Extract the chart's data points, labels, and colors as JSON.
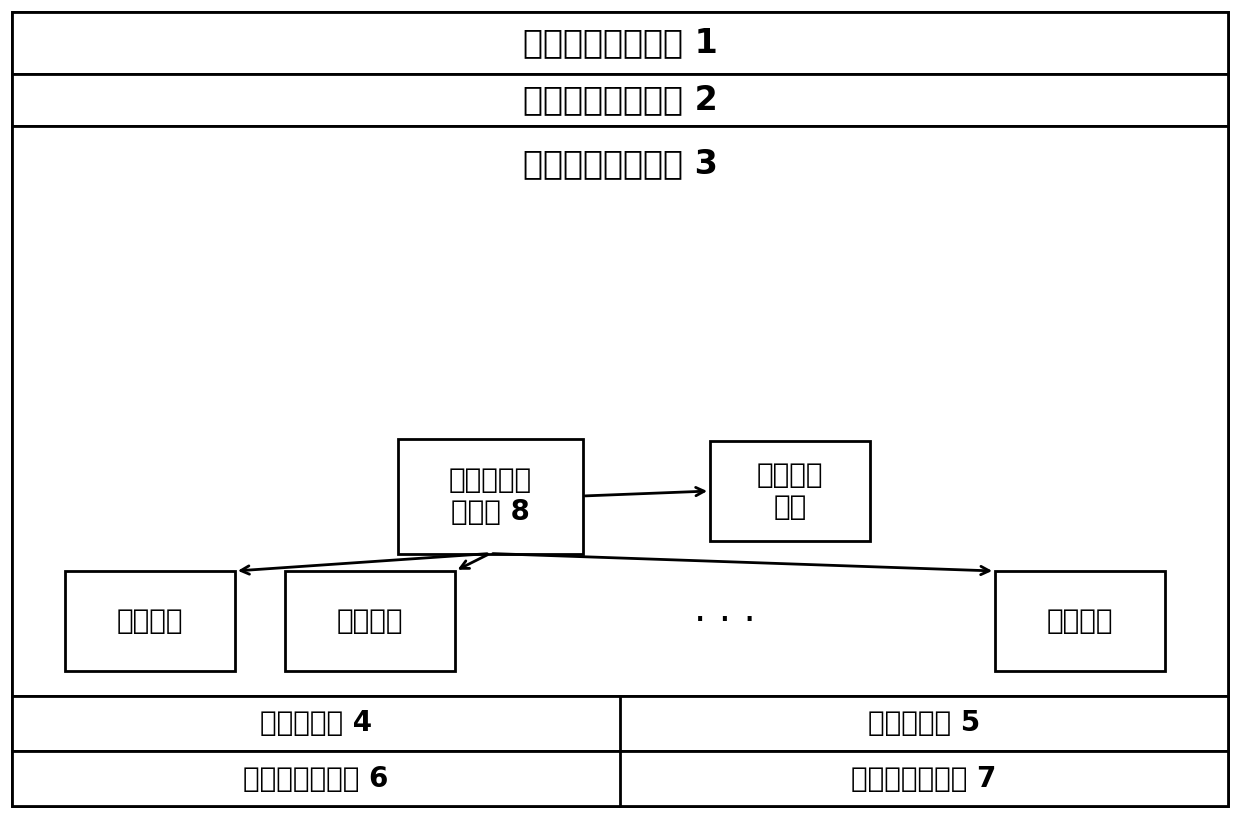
{
  "bg_color": "#ffffff",
  "line1_text": "加载工具使用接口 1",
  "line2_text": "加载任务管理模块 2",
  "line3_text": "加载任务执行模块 3",
  "center_box_text": "认证策略管\n理模块 8",
  "right_box_text": "认证模块\n列表",
  "bottom_box1_text": "认证模块",
  "bottom_box2_text": "认证模块",
  "bottom_box3_text": "认证模块",
  "dots_text": "· · ·",
  "bottom_left_text": "读数据模块 4",
  "bottom_right_text": "写数据模块 5",
  "bottom_left2_text": "数据源访问模块 6",
  "bottom_right2_text": "数据库访问模块 7",
  "font_size_header": 24,
  "font_size_box": 20,
  "font_size_bottom": 20,
  "font_size_dots": 28,
  "lw": 2.0,
  "fig_w": 12.4,
  "fig_h": 8.18,
  "dpi": 100
}
